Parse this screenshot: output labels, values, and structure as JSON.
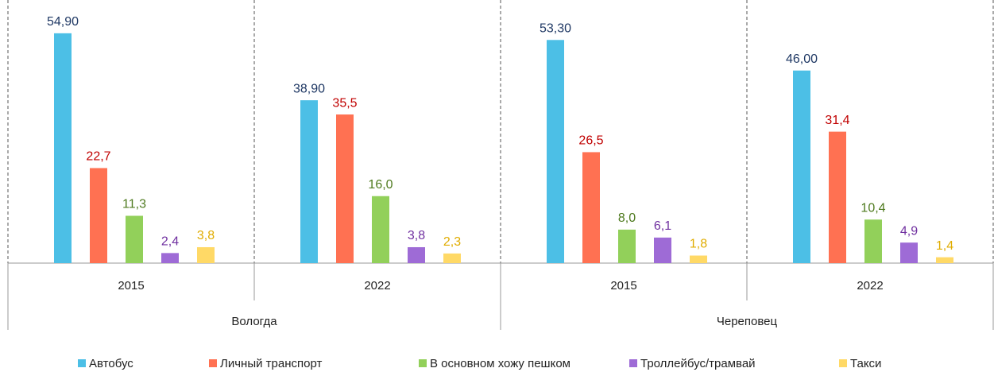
{
  "chart_data": {
    "type": "bar",
    "categories": [
      "2015",
      "2022",
      "2015",
      "2022"
    ],
    "category_groups": [
      "Вологда",
      "Череповец"
    ],
    "ylim": [
      0,
      60
    ],
    "series": [
      {
        "name": "Автобус",
        "color": "#4cbfe6",
        "label_color": "#1f3864",
        "values": [
          54.9,
          38.9,
          53.3,
          46.0
        ],
        "value_labels": [
          "54,90",
          "38,90",
          "53,30",
          "46,00"
        ]
      },
      {
        "name": "Личный транспорт",
        "color": "#ff7152",
        "label_color": "#c00000",
        "values": [
          22.7,
          35.5,
          26.5,
          31.4
        ],
        "value_labels": [
          "22,7",
          "35,5",
          "26,5",
          "31,4"
        ]
      },
      {
        "name": "В основном хожу пешком",
        "color": "#92d05a",
        "label_color": "#4e7a1e",
        "values": [
          11.3,
          16.0,
          8.0,
          10.4
        ],
        "value_labels": [
          "11,3",
          "16,0",
          "8,0",
          "10,4"
        ]
      },
      {
        "name": "Троллейбус/трамвай",
        "color": "#9e6bd6",
        "label_color": "#7030a0",
        "values": [
          2.4,
          3.8,
          6.1,
          4.9
        ],
        "value_labels": [
          "2,4",
          "3,8",
          "6,1",
          "4,9"
        ]
      },
      {
        "name": "Такси",
        "color": "#ffd966",
        "label_color": "#e0ac00",
        "values": [
          3.8,
          2.3,
          1.8,
          1.4
        ],
        "value_labels": [
          "3,8",
          "2,3",
          "1,8",
          "1,4"
        ]
      }
    ]
  }
}
